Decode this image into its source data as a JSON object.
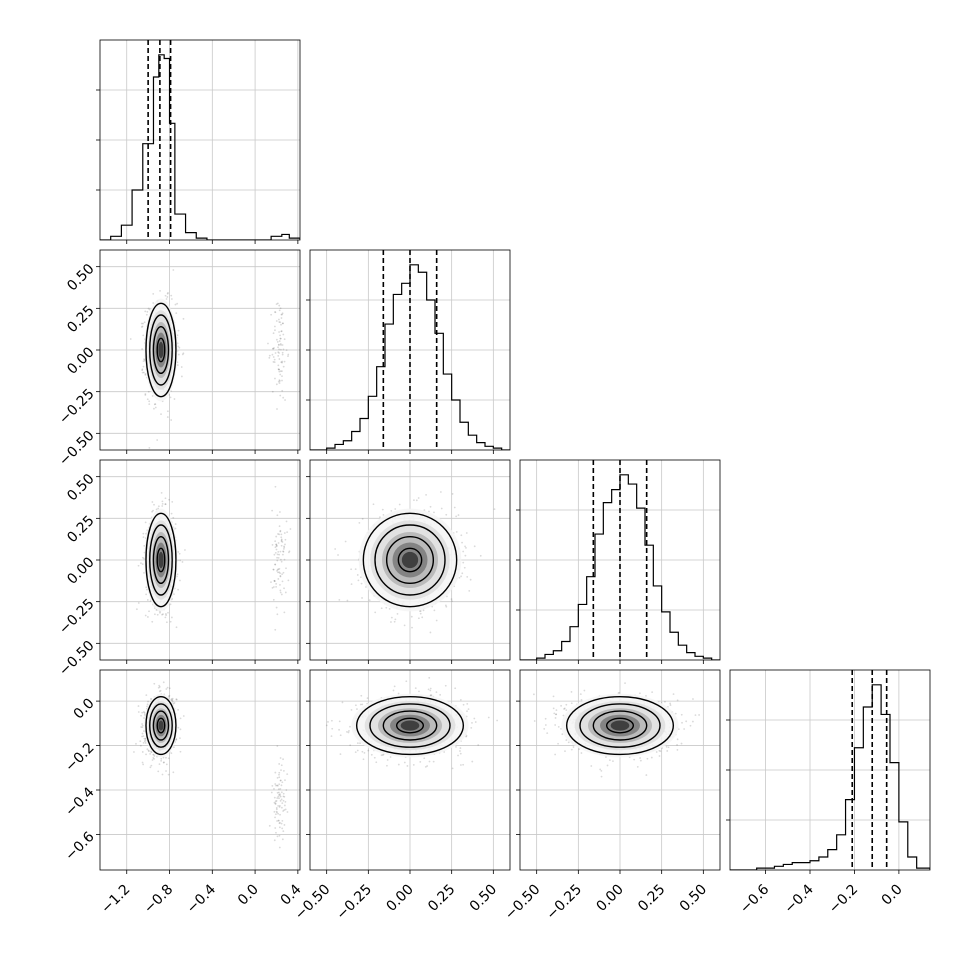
{
  "chart_data": {
    "type": "corner",
    "grid": true,
    "quantile_lines": "dashed",
    "parameters": [
      {
        "id": "p1",
        "range": [
          -1.45,
          0.42
        ],
        "ticks": [
          -1.2,
          -0.8,
          -0.4,
          0.0,
          0.4
        ],
        "tick_labels": [
          "−1.2",
          "−0.8",
          "−0.4",
          "0.0",
          "0.4"
        ],
        "quantiles": [
          -1.0,
          -0.89,
          -0.79
        ],
        "hist_edges": [
          -1.45,
          -1.35,
          -1.25,
          -1.15,
          -1.05,
          -0.95,
          -0.9,
          -0.85,
          -0.8,
          -0.75,
          -0.65,
          -0.55,
          -0.45,
          -0.35,
          -0.25,
          -0.15,
          -0.05,
          0.05,
          0.15,
          0.25,
          0.32,
          0.42
        ],
        "hist_counts": [
          0,
          2,
          8,
          27,
          52,
          88,
          100,
          98,
          63,
          14,
          4,
          1,
          0,
          0,
          0,
          0,
          0,
          0,
          2,
          3,
          1
        ]
      },
      {
        "id": "p2",
        "range": [
          -0.6,
          0.6
        ],
        "ticks": [
          -0.5,
          -0.25,
          0.0,
          0.25,
          0.5
        ],
        "tick_labels": [
          "−0.50",
          "−0.25",
          "0.00",
          "0.25",
          "0.50"
        ],
        "quantiles": [
          -0.16,
          0.0,
          0.16
        ],
        "hist_edges": [
          -0.6,
          -0.55,
          -0.5,
          -0.45,
          -0.4,
          -0.35,
          -0.3,
          -0.25,
          -0.2,
          -0.15,
          -0.1,
          -0.05,
          0.0,
          0.05,
          0.1,
          0.15,
          0.2,
          0.25,
          0.3,
          0.35,
          0.4,
          0.45,
          0.5,
          0.55,
          0.6
        ],
        "hist_counts": [
          0,
          0,
          1,
          3,
          5,
          10,
          17,
          29,
          45,
          68,
          84,
          90,
          100,
          96,
          81,
          63,
          41,
          27,
          15,
          8,
          4,
          2,
          1,
          0
        ]
      },
      {
        "id": "p3",
        "range": [
          -0.6,
          0.6
        ],
        "ticks": [
          -0.5,
          -0.25,
          0.0,
          0.25,
          0.5
        ],
        "tick_labels": [
          "−0.50",
          "−0.25",
          "0.00",
          "0.25",
          "0.50"
        ],
        "quantiles": [
          -0.16,
          0.0,
          0.16
        ],
        "hist_edges": [
          -0.6,
          -0.55,
          -0.5,
          -0.45,
          -0.4,
          -0.35,
          -0.3,
          -0.25,
          -0.2,
          -0.15,
          -0.1,
          -0.05,
          0.0,
          0.05,
          0.1,
          0.15,
          0.2,
          0.25,
          0.3,
          0.35,
          0.4,
          0.45,
          0.5,
          0.55,
          0.6
        ],
        "hist_counts": [
          0,
          0,
          1,
          3,
          5,
          10,
          18,
          30,
          45,
          68,
          85,
          92,
          100,
          95,
          82,
          62,
          40,
          26,
          15,
          8,
          4,
          2,
          1,
          0
        ]
      },
      {
        "id": "p4",
        "range": [
          -0.76,
          0.14
        ],
        "ticks": [
          -0.6,
          -0.4,
          -0.2,
          0.0
        ],
        "tick_labels": [
          "−0.6",
          "−0.4",
          "−0.2",
          "0.0"
        ],
        "quantiles": [
          -0.21,
          -0.12,
          -0.055
        ],
        "hist_edges": [
          -0.76,
          -0.72,
          -0.68,
          -0.64,
          -0.6,
          -0.56,
          -0.52,
          -0.48,
          -0.44,
          -0.4,
          -0.36,
          -0.32,
          -0.28,
          -0.24,
          -0.2,
          -0.16,
          -0.12,
          -0.08,
          -0.04,
          0.0,
          0.04,
          0.08,
          0.14
        ],
        "hist_counts": [
          0,
          0,
          0,
          1,
          1,
          2,
          3,
          4,
          4,
          5,
          7,
          11,
          19,
          38,
          66,
          88,
          100,
          84,
          58,
          26,
          7,
          1
        ]
      }
    ],
    "pairs": [
      {
        "row": 1,
        "col": 0,
        "mean": [
          -0.88,
          0.0
        ],
        "sd": [
          0.07,
          0.14
        ],
        "rho": 0.0,
        "outlier_mean": [
          0.23,
          0.0
        ],
        "outlier_sd": [
          0.035,
          0.16
        ]
      },
      {
        "row": 2,
        "col": 0,
        "mean": [
          -0.88,
          0.0
        ],
        "sd": [
          0.07,
          0.14
        ],
        "rho": 0.0,
        "outlier_mean": [
          0.23,
          0.0
        ],
        "outlier_sd": [
          0.035,
          0.16
        ]
      },
      {
        "row": 2,
        "col": 1,
        "mean": [
          0.0,
          0.0
        ],
        "sd": [
          0.14,
          0.14
        ],
        "rho": 0.0
      },
      {
        "row": 3,
        "col": 0,
        "mean": [
          -0.88,
          -0.11
        ],
        "sd": [
          0.07,
          0.065
        ],
        "rho": 0.1,
        "outlier_mean": [
          0.23,
          -0.45
        ],
        "outlier_sd": [
          0.035,
          0.09
        ]
      },
      {
        "row": 3,
        "col": 1,
        "mean": [
          0.0,
          -0.11
        ],
        "sd": [
          0.16,
          0.065
        ],
        "rho": 0.0
      },
      {
        "row": 3,
        "col": 2,
        "mean": [
          0.0,
          -0.11
        ],
        "sd": [
          0.16,
          0.065
        ],
        "rho": 0.0
      }
    ],
    "contour_sigmas": [
      0.5,
      1.0,
      1.5,
      2.0
    ]
  }
}
